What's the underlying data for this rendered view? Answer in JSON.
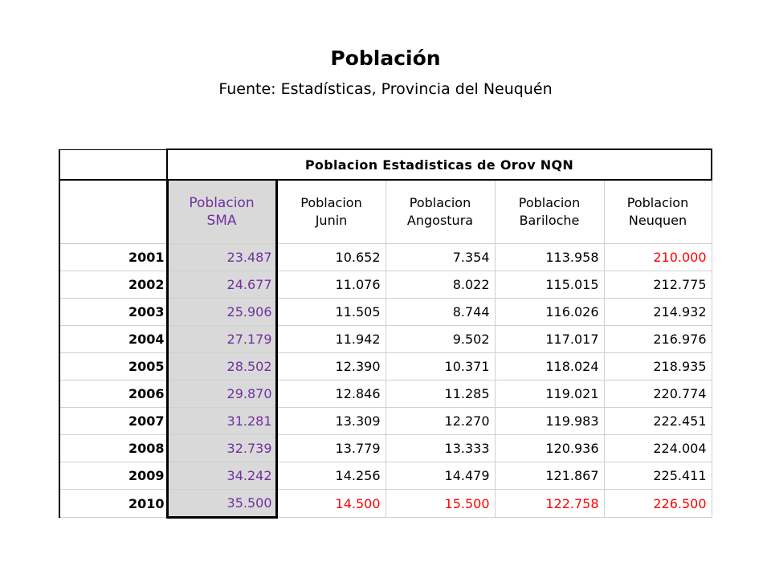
{
  "slide": {
    "title": "Población",
    "subtitle": "Fuente: Estadísticas, Provincia del Neuquén"
  },
  "table": {
    "banner": "Poblacion Estadisticas de Orov NQN",
    "headers": [
      [
        "Poblacion",
        "SMA"
      ],
      [
        "Poblacion",
        "Junin"
      ],
      [
        "Poblacion",
        "Angostura"
      ],
      [
        "Poblacion",
        "Bariloche"
      ],
      [
        "Poblacion",
        "Neuquen"
      ]
    ],
    "rows": [
      {
        "year": "2001",
        "values": [
          "23.487",
          "10.652",
          "7.354",
          "113.958",
          "210.000"
        ]
      },
      {
        "year": "2002",
        "values": [
          "24.677",
          "11.076",
          "8.022",
          "115.015",
          "212.775"
        ]
      },
      {
        "year": "2003",
        "values": [
          "25.906",
          "11.505",
          "8.744",
          "116.026",
          "214.932"
        ]
      },
      {
        "year": "2004",
        "values": [
          "27.179",
          "11.942",
          "9.502",
          "117.017",
          "216.976"
        ]
      },
      {
        "year": "2005",
        "values": [
          "28.502",
          "12.390",
          "10.371",
          "118.024",
          "218.935"
        ]
      },
      {
        "year": "2006",
        "values": [
          "29.870",
          "12.846",
          "11.285",
          "119.021",
          "220.774"
        ]
      },
      {
        "year": "2007",
        "values": [
          "31.281",
          "13.309",
          "12.270",
          "119.983",
          "222.451"
        ]
      },
      {
        "year": "2008",
        "values": [
          "32.739",
          "13.779",
          "13.333",
          "120.936",
          "224.004"
        ]
      },
      {
        "year": "2009",
        "values": [
          "34.242",
          "14.256",
          "14.479",
          "121.867",
          "225.411"
        ]
      },
      {
        "year": "2010",
        "values": [
          "35.500",
          "14.500",
          "15.500",
          "122.758",
          "226.500"
        ]
      }
    ],
    "colors": {
      "sma_text": "#7030a0",
      "sma_fill": "#d9d9d9",
      "highlight_red": "#ff0000",
      "text": "#000000"
    }
  }
}
